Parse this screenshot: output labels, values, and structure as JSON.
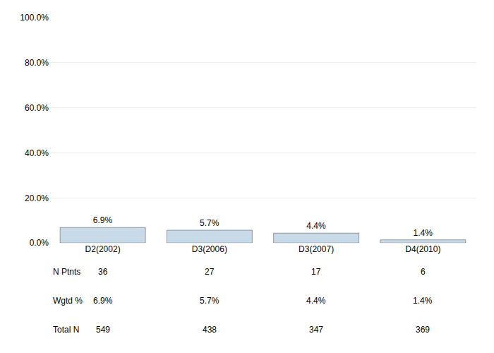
{
  "chart_data": {
    "type": "bar",
    "categories": [
      "D2(2002)",
      "D3(2006)",
      "D3(2007)",
      "D4(2010)"
    ],
    "values": [
      6.9,
      5.7,
      4.4,
      1.4
    ],
    "value_labels": [
      "6.9%",
      "5.7%",
      "4.4%",
      "1.4%"
    ],
    "data_labels": true,
    "color": "#c8d9e8",
    "ylim": [
      0,
      100
    ],
    "yticks": [
      {
        "value": 0,
        "label": "0.0%"
      },
      {
        "value": 20,
        "label": "20.0%"
      },
      {
        "value": 40,
        "label": "40.0%"
      },
      {
        "value": 60,
        "label": "60.0%"
      },
      {
        "value": 80,
        "label": "80.0%"
      },
      {
        "value": 100,
        "label": "100.0%"
      }
    ],
    "grid": true,
    "table": {
      "row_labels": [
        "N Ptnts",
        "Wgtd %",
        "Total N"
      ],
      "cells": [
        [
          "36",
          "27",
          "17",
          "6"
        ],
        [
          "6.9%",
          "5.7%",
          "4.4%",
          "1.4%"
        ],
        [
          "549",
          "438",
          "347",
          "369"
        ]
      ]
    }
  }
}
